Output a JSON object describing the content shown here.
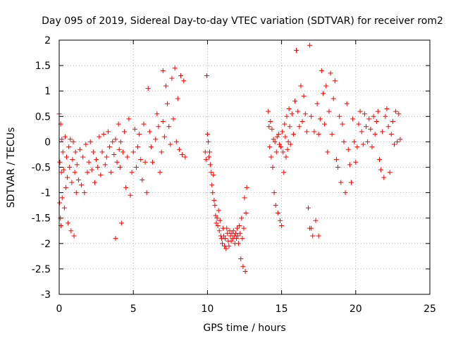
{
  "chart_data": {
    "type": "scatter",
    "title": "Day 095 of 2019, Sidereal Day-to-day VTEC variation (SDTVAR) for receiver rom2",
    "xlabel": "GPS time / hours",
    "ylabel": "SDTVAR / TECUs",
    "xlim": [
      0,
      25
    ],
    "ylim": [
      -3,
      2
    ],
    "xticks": [
      0,
      5,
      10,
      15,
      20,
      25
    ],
    "xtick_labels": [
      "0",
      "5",
      "10",
      "15",
      "20",
      "25"
    ],
    "yticks": [
      -3,
      -2.5,
      -2,
      -1.5,
      -1,
      -0.5,
      0,
      0.5,
      1,
      1.5,
      2
    ],
    "ytick_labels": [
      "-3",
      "-2.5",
      "-2",
      "-1.5",
      "-1",
      "-0.5",
      "0",
      "0.5",
      "1",
      "1.5",
      "2"
    ],
    "grid": true,
    "marker": "+",
    "color": "#ff0000",
    "series": [
      {
        "name": "SDTVAR",
        "x": [
          0.0,
          0.03,
          0.05,
          0.08,
          0.1,
          0.12,
          0.15,
          0.18,
          0.2,
          0.25,
          0.3,
          0.35,
          0.4,
          0.45,
          0.5,
          0.55,
          0.6,
          0.65,
          0.7,
          0.75,
          0.8,
          0.85,
          0.9,
          0.95,
          1.0,
          1.05,
          1.1,
          1.15,
          1.2,
          1.3,
          1.4,
          1.5,
          1.6,
          1.7,
          1.8,
          1.9,
          2.0,
          2.1,
          2.2,
          2.3,
          2.4,
          2.5,
          2.6,
          2.7,
          2.8,
          2.9,
          3.0,
          3.1,
          3.2,
          3.3,
          3.4,
          3.5,
          3.6,
          3.7,
          3.8,
          3.9,
          4.0,
          4.05,
          4.1,
          4.15,
          4.2,
          4.3,
          4.4,
          4.5,
          4.6,
          4.7,
          4.8,
          4.9,
          5.0,
          5.1,
          5.2,
          5.3,
          5.4,
          5.5,
          5.6,
          5.7,
          5.8,
          5.9,
          6.0,
          6.1,
          6.2,
          6.3,
          6.5,
          6.6,
          6.7,
          6.8,
          6.9,
          7.0,
          7.1,
          7.2,
          7.3,
          7.4,
          7.5,
          7.6,
          7.7,
          7.8,
          7.9,
          8.0,
          8.1,
          8.2,
          8.3,
          8.4,
          8.5,
          9.85,
          9.9,
          9.95,
          10.0,
          10.05,
          10.1,
          10.15,
          10.2,
          10.25,
          10.3,
          10.35,
          10.4,
          10.45,
          10.5,
          10.55,
          10.6,
          10.65,
          10.7,
          10.75,
          10.8,
          10.85,
          10.9,
          10.95,
          11.0,
          11.05,
          11.1,
          11.15,
          11.2,
          11.25,
          11.3,
          11.35,
          11.4,
          11.45,
          11.5,
          11.55,
          11.6,
          11.65,
          11.7,
          11.75,
          11.8,
          11.85,
          11.9,
          11.95,
          12.0,
          12.05,
          12.1,
          12.15,
          12.2,
          12.25,
          12.3,
          12.35,
          12.4,
          12.45,
          12.5,
          12.55,
          12.6,
          12.65,
          14.1,
          14.15,
          14.2,
          14.25,
          14.3,
          14.35,
          14.4,
          14.45,
          14.5,
          14.55,
          14.6,
          14.65,
          14.7,
          14.75,
          14.8,
          14.85,
          14.9,
          14.95,
          15.0,
          15.05,
          15.1,
          15.15,
          15.2,
          15.25,
          15.3,
          15.35,
          15.4,
          15.45,
          15.5,
          15.55,
          15.6,
          15.7,
          15.8,
          15.9,
          16.0,
          16.1,
          16.2,
          16.3,
          16.4,
          16.5,
          16.6,
          16.7,
          16.8,
          16.9,
          17.0,
          17.1,
          17.2,
          17.3,
          17.4,
          17.5,
          17.6,
          17.7,
          17.8,
          17.9,
          18.0,
          18.1,
          18.2,
          18.3,
          18.4,
          18.5,
          18.6,
          18.7,
          18.8,
          18.9,
          19.0,
          19.1,
          19.2,
          19.3,
          19.4,
          19.5,
          19.6,
          19.7,
          19.8,
          19.9,
          20.0,
          20.1,
          20.2,
          20.3,
          20.4,
          20.5,
          20.6,
          20.7,
          20.8,
          20.9,
          21.0,
          21.1,
          21.2,
          21.3,
          21.4,
          21.5,
          21.6,
          21.7,
          21.8,
          21.9,
          22.0,
          22.1,
          22.2,
          22.3,
          22.4,
          22.5,
          22.6,
          22.7,
          22.8,
          22.9,
          23.0
        ],
        "y": [
          0.55,
          -1.2,
          -0.4,
          -1.5,
          0.35,
          -1.65,
          -0.6,
          0.05,
          -1.1,
          -0.2,
          -0.55,
          -1.3,
          0.1,
          -0.9,
          -0.3,
          -0.7,
          -1.6,
          -0.1,
          -0.5,
          0.05,
          -1.75,
          -0.8,
          -0.35,
          0.0,
          -1.85,
          -0.6,
          -0.2,
          -1.0,
          -0.45,
          -0.75,
          -0.15,
          -0.85,
          -0.3,
          -1.0,
          -0.05,
          -0.6,
          -0.4,
          0.0,
          -0.55,
          -0.2,
          -0.8,
          -0.35,
          -0.5,
          0.1,
          -0.65,
          -0.2,
          0.15,
          -0.45,
          -0.3,
          0.2,
          -0.1,
          -0.6,
          0.0,
          -0.25,
          0.05,
          -0.4,
          0.35,
          -0.15,
          -0.5,
          0.0,
          -1.6,
          -0.2,
          0.2,
          -0.9,
          -0.3,
          0.45,
          -1.05,
          -0.6,
          -0.2,
          0.25,
          -0.5,
          -0.1,
          0.15,
          -0.35,
          -0.75,
          0.35,
          -0.4,
          -1.0,
          1.05,
          0.2,
          -0.1,
          -0.4,
          0.05,
          0.55,
          0.3,
          -0.6,
          -0.2,
          0.4,
          0.1,
          1.1,
          0.75,
          0.3,
          -0.05,
          1.25,
          0.45,
          1.45,
          0.0,
          0.85,
          -0.15,
          1.3,
          -0.25,
          1.2,
          -0.3,
          -0.2,
          -0.35,
          1.3,
          0.15,
          0.0,
          -0.3,
          -0.2,
          -0.45,
          -0.6,
          -0.85,
          -1.0,
          -0.65,
          -1.15,
          -1.25,
          -1.45,
          -1.6,
          -1.5,
          -1.65,
          -1.35,
          -1.75,
          -1.55,
          -1.85,
          -1.9,
          -2.0,
          -1.7,
          -1.85,
          -2.05,
          -1.9,
          -2.1,
          -1.7,
          -1.8,
          -1.95,
          -2.05,
          -1.75,
          -1.85,
          -1.95,
          -1.8,
          -1.9,
          -1.75,
          -1.85,
          -2.0,
          -1.8,
          -1.9,
          -1.7,
          -1.85,
          -2.0,
          -1.65,
          -1.8,
          -2.3,
          -1.5,
          -1.9,
          -2.45,
          -1.7,
          -1.1,
          -2.55,
          -1.4,
          -0.9,
          0.6,
          0.3,
          -0.1,
          0.4,
          -0.3,
          0.25,
          -0.5,
          0.05,
          -1.0,
          0.0,
          -1.25,
          -0.2,
          0.1,
          -1.4,
          0.15,
          -0.05,
          -1.55,
          -0.1,
          -1.65,
          0.2,
          -0.2,
          -0.6,
          0.35,
          0.1,
          -0.3,
          0.5,
          -0.15,
          0.0,
          0.65,
          0.3,
          -0.05,
          0.55,
          0.15,
          0.8,
          1.8,
          0.6,
          0.3,
          1.1,
          0.4,
          0.9,
          0.55,
          0.2,
          -1.3,
          -1.7,
          0.5,
          -1.85,
          0.2,
          -1.55,
          0.75,
          0.15,
          0.45,
          1.4,
          0.95,
          0.35,
          1.1,
          -0.2,
          0.6,
          1.35,
          0.15,
          0.85,
          1.2,
          -0.35,
          -0.5,
          0.5,
          -0.8,
          0.35,
          0.0,
          -1.0,
          0.75,
          -0.15,
          -0.45,
          -0.8,
          0.45,
          0.0,
          -0.4,
          -0.1,
          0.35,
          0.6,
          0.2,
          -0.05,
          0.55,
          0.3,
          0.0,
          0.45,
          0.25,
          -0.1,
          0.5,
          0.15,
          0.4,
          0.6,
          -0.35,
          -0.55,
          0.2,
          -0.7,
          0.5,
          0.65,
          0.3,
          -0.6,
          0.15,
          0.4,
          -0.05,
          0.6,
          0.0,
          0.55,
          0.05
        ],
        "scattered_points": [
          [
            3.8,
            -1.9
          ],
          [
            16.0,
            1.8
          ],
          [
            16.9,
            1.9
          ],
          [
            17.0,
            -1.7
          ],
          [
            17.5,
            -1.85
          ],
          [
            7.0,
            1.4
          ]
        ]
      }
    ]
  }
}
